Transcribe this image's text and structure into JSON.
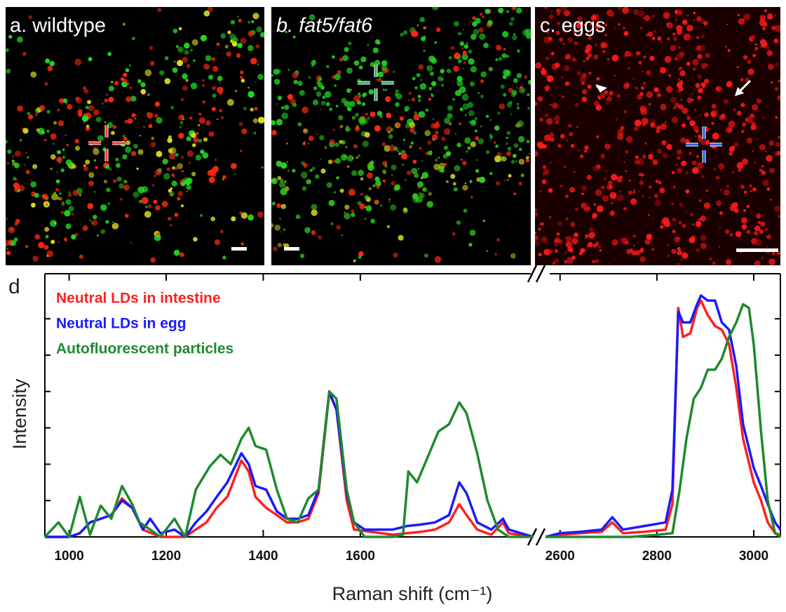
{
  "panels": [
    {
      "label": "a. wildtype"
    },
    {
      "label": "b. fat5/fat6"
    },
    {
      "label": "c. eggs"
    }
  ],
  "chart_data": {
    "type": "line",
    "panel_label": "d",
    "x_label": "Raman shift (cm⁻¹)",
    "y_label": "Intensity",
    "xlim": [
      950,
      3055
    ],
    "x_break": [
      1960,
      2570
    ],
    "xticks": [
      1000,
      1200,
      1400,
      1600,
      2600,
      2800,
      3000
    ],
    "ylim": [
      0,
      7.24
    ],
    "yticks": [
      1,
      2,
      3,
      4,
      5,
      6
    ],
    "legend": "upper left",
    "series": [
      {
        "name": "Neutral LDs in intestine",
        "color": "#ff1f1f",
        "x": [
          950,
          1000,
          1022,
          1043,
          1065,
          1087,
          1109,
          1130,
          1152,
          1188,
          1239,
          1261,
          1283,
          1304,
          1326,
          1355,
          1370,
          1384,
          1406,
          1428,
          1449,
          1471,
          1493,
          1514,
          1536,
          1551,
          1572,
          1587,
          1667,
          1696,
          1725,
          1754,
          1783,
          1804,
          1819,
          1841,
          1870,
          1894,
          1906,
          1957,
          2570,
          2599,
          2642,
          2686,
          2708,
          2730,
          2774,
          2818,
          2832,
          2844,
          2854,
          2869,
          2883,
          2891,
          2905,
          2920,
          2934,
          2949,
          2964,
          2978,
          3000,
          3015,
          3029,
          3044,
          3055
        ],
        "values": [
          0,
          0,
          0.1,
          0.4,
          0.5,
          0.6,
          1.06,
          0.8,
          0.2,
          0,
          0,
          0.2,
          0.4,
          0.8,
          1.1,
          2.1,
          1.8,
          1.1,
          0.8,
          0.6,
          0.4,
          0.4,
          0.5,
          1.2,
          3.96,
          3.5,
          1.0,
          0.2,
          0.06,
          0.1,
          0.14,
          0.2,
          0.4,
          0.9,
          0.6,
          0.2,
          0.06,
          0.4,
          0.1,
          0,
          0,
          0.06,
          0.1,
          0.14,
          0.4,
          0.1,
          0.14,
          0.2,
          0.9,
          6.3,
          5.5,
          5.6,
          6.3,
          6.5,
          6.1,
          5.8,
          5.7,
          5.3,
          4.1,
          2.7,
          1.5,
          1.0,
          0.4,
          0.1,
          0.06
        ]
      },
      {
        "name": "Neutral LDs in egg",
        "color": "#1a1aff",
        "x": [
          950,
          1000,
          1022,
          1043,
          1065,
          1087,
          1109,
          1130,
          1152,
          1167,
          1188,
          1217,
          1239,
          1261,
          1283,
          1304,
          1326,
          1355,
          1370,
          1384,
          1406,
          1428,
          1449,
          1471,
          1493,
          1514,
          1536,
          1551,
          1572,
          1587,
          1609,
          1667,
          1696,
          1725,
          1754,
          1783,
          1804,
          1819,
          1841,
          1870,
          1894,
          1906,
          1957,
          2570,
          2599,
          2642,
          2686,
          2708,
          2730,
          2774,
          2818,
          2832,
          2844,
          2854,
          2869,
          2883,
          2891,
          2905,
          2920,
          2934,
          2949,
          2964,
          2978,
          3000,
          3015,
          3029,
          3044,
          3055
        ],
        "values": [
          0,
          0,
          0.1,
          0.4,
          0.5,
          0.6,
          1.0,
          0.8,
          0.2,
          0.5,
          0.1,
          0.2,
          0,
          0.4,
          0.7,
          1.1,
          1.5,
          2.3,
          2.0,
          1.4,
          1.3,
          0.7,
          0.5,
          0.5,
          0.6,
          1.3,
          4.0,
          3.5,
          1.2,
          0.4,
          0.2,
          0.2,
          0.3,
          0.34,
          0.4,
          0.6,
          1.5,
          1.2,
          0.4,
          0.2,
          0.5,
          0.2,
          0,
          0,
          0.1,
          0.14,
          0.2,
          0.54,
          0.2,
          0.3,
          0.4,
          1.3,
          6.2,
          5.9,
          5.9,
          6.4,
          6.64,
          6.5,
          6.5,
          5.9,
          5.7,
          4.7,
          3.1,
          1.9,
          1.4,
          0.9,
          0.4,
          0.2
        ]
      },
      {
        "name": "Autofluorescent particles",
        "color": "#1e8a2e",
        "x": [
          950,
          978,
          1000,
          1022,
          1043,
          1065,
          1087,
          1109,
          1130,
          1145,
          1167,
          1188,
          1217,
          1239,
          1261,
          1290,
          1312,
          1333,
          1355,
          1370,
          1384,
          1406,
          1428,
          1449,
          1471,
          1493,
          1514,
          1536,
          1551,
          1572,
          1587,
          1609,
          1667,
          1688,
          1699,
          1717,
          1739,
          1761,
          1783,
          1804,
          1819,
          1841,
          1862,
          1884,
          1906,
          1957,
          2570,
          2672,
          2745,
          2803,
          2832,
          2847,
          2861,
          2876,
          2891,
          2905,
          2920,
          2934,
          2949,
          2964,
          2978,
          2990,
          3000,
          3015,
          3029,
          3044,
          3055
        ],
        "values": [
          0,
          0.4,
          0,
          1.1,
          0.06,
          0.86,
          0.5,
          1.4,
          0.9,
          0.4,
          0.2,
          0,
          0.5,
          0,
          1.3,
          1.94,
          2.26,
          2.0,
          2.7,
          3.0,
          2.5,
          2.4,
          1.3,
          0.5,
          0.4,
          1.06,
          1.3,
          4.0,
          3.8,
          1.3,
          0.4,
          0,
          0,
          0.06,
          1.8,
          1.5,
          2.2,
          2.9,
          3.1,
          3.7,
          3.4,
          2.3,
          1.0,
          0.2,
          0,
          0,
          0,
          0,
          0,
          0.06,
          0.1,
          1.3,
          2.7,
          3.8,
          4.1,
          4.6,
          4.6,
          4.9,
          5.5,
          5.9,
          6.4,
          6.3,
          5.3,
          2.9,
          1.0,
          0.1,
          0
        ]
      }
    ]
  }
}
